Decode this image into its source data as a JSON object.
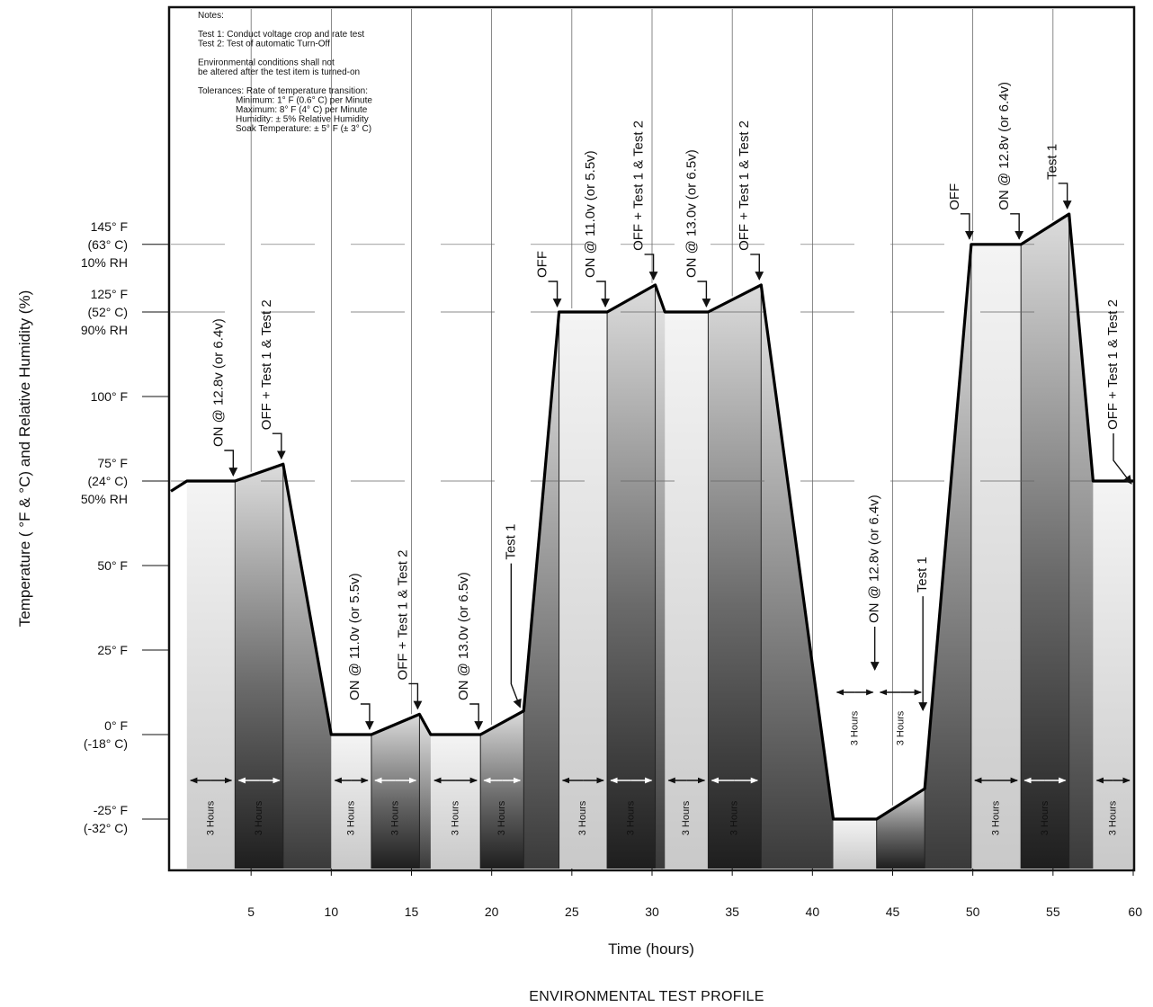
{
  "chart_data": {
    "type": "line",
    "title": "ENVIRONMENTAL TEST PROFILE",
    "xlabel": "Time (hours)",
    "ylabel": "Temperature ( °F & °C) and Relative Humidity (%)",
    "xlim": [
      0,
      60
    ],
    "ylim": [
      -40,
      185
    ],
    "grid": false,
    "x_ticks": [
      {
        "value": 5,
        "label": "5"
      },
      {
        "value": 10,
        "label": "10"
      },
      {
        "value": 15,
        "label": "15"
      },
      {
        "value": 20,
        "label": "20"
      },
      {
        "value": 25,
        "label": "25"
      },
      {
        "value": 30,
        "label": "30"
      },
      {
        "value": 35,
        "label": "35"
      },
      {
        "value": 40,
        "label": "40"
      },
      {
        "value": 45,
        "label": "45"
      },
      {
        "value": 50,
        "label": "50"
      },
      {
        "value": 55,
        "label": "55"
      },
      {
        "value": 60,
        "label": "60"
      }
    ],
    "y_ticks": [
      {
        "value": 145,
        "lines": [
          "145° F",
          "(63° C)",
          "10% RH"
        ]
      },
      {
        "value": 125,
        "lines": [
          "125° F",
          "(52° C)",
          "90% RH"
        ]
      },
      {
        "value": 100,
        "lines": [
          "100° F"
        ]
      },
      {
        "value": 75,
        "lines": [
          "75° F",
          "(24° C)",
          "50% RH"
        ]
      },
      {
        "value": 50,
        "lines": [
          "50° F"
        ]
      },
      {
        "value": 25,
        "lines": [
          "25° F"
        ]
      },
      {
        "value": 0,
        "lines": [
          "0° F",
          "(-18° C)"
        ]
      },
      {
        "value": -25,
        "lines": [
          "-25° F",
          "(-32° C)"
        ]
      }
    ],
    "series": [
      {
        "x": [
          0,
          1,
          4,
          7,
          10,
          12.5,
          15.5,
          16.2,
          19.3,
          22,
          24.2,
          27.2,
          30.2,
          30.8,
          33.5,
          36.8,
          41.3,
          44,
          47,
          49.9,
          53,
          56,
          57.5,
          60
        ],
        "y": [
          72,
          75,
          75,
          80,
          0,
          0,
          6,
          0,
          0,
          7,
          125,
          125,
          133,
          125,
          125,
          133,
          -25,
          -25,
          -16,
          145,
          145,
          154,
          75,
          75
        ]
      }
    ],
    "notes": [
      "Notes:",
      "",
      "Test 1: Conduct voltage crop and rate test",
      "Test 2: Test of automatic Turn-Off",
      "",
      "Environmental conditions shall not",
      "be altered after the test item is turned-on",
      "",
      "Tolerances: Rate of temperature transition:",
      "Minimum: 1° F (0.6° C) per Minute",
      "Maximum: 8° F (4° C) per Minute",
      "Humidity: ± 5% Relative Humidity",
      "Soak Temperature: ± 5° F (± 3° C)"
    ],
    "annotations": [
      {
        "text": "ON @ 12.8v (or 6.4v)",
        "x": 4
      },
      {
        "text": "OFF + Test 1 & Test 2",
        "x": 7
      },
      {
        "text": "ON @ 11.0v (or 5.5v)",
        "x": 12.5
      },
      {
        "text": "OFF + Test 1 & Test 2",
        "x": 15.5
      },
      {
        "text": "ON @ 13.0v (or 6.5v)",
        "x": 19.3
      },
      {
        "text": "Test 1",
        "x": 22
      },
      {
        "text": "OFF",
        "x": 24.2
      },
      {
        "text": "ON @ 11.0v (or 5.5v)",
        "x": 27.2
      },
      {
        "text": "OFF + Test 1 & Test 2",
        "x": 30.2
      },
      {
        "text": "ON @ 13.0v (or 6.5v)",
        "x": 33.5
      },
      {
        "text": "OFF + Test 1 & Test 2",
        "x": 36.8
      },
      {
        "text": "ON @ 12.8v (or 6.4v)",
        "x": 44
      },
      {
        "text": "Test 1",
        "x": 47
      },
      {
        "text": "OFF",
        "x": 49.9
      },
      {
        "text": "ON @ 12.8v (or 6.4v)",
        "x": 53
      },
      {
        "text": "Test 1",
        "x": 56
      },
      {
        "text": "OFF + Test 1 & Test 2",
        "x": 60
      }
    ],
    "durations": [
      {
        "label": "3 Hours",
        "x1": 1,
        "x2": 4
      },
      {
        "label": "3 Hours",
        "x1": 4,
        "x2": 7
      },
      {
        "label": "3 Hours",
        "x1": 10,
        "x2": 12.5
      },
      {
        "label": "3 Hours",
        "x1": 12.5,
        "x2": 15.5
      },
      {
        "label": "3 Hours",
        "x1": 16.2,
        "x2": 19.3
      },
      {
        "label": "3 Hours",
        "x1": 19.3,
        "x2": 22
      },
      {
        "label": "3 Hours",
        "x1": 24.2,
        "x2": 27.2
      },
      {
        "label": "3 Hours",
        "x1": 27.2,
        "x2": 30.2
      },
      {
        "label": "3 Hours",
        "x1": 30.8,
        "x2": 33.5
      },
      {
        "label": "3 Hours",
        "x1": 33.5,
        "x2": 36.8
      },
      {
        "label": "3 Hours",
        "x1": 41.3,
        "x2": 44
      },
      {
        "label": "3 Hours",
        "x1": 44,
        "x2": 47
      },
      {
        "label": "3 Hours",
        "x1": 49.9,
        "x2": 53
      },
      {
        "label": "3 Hours",
        "x1": 53,
        "x2": 56
      },
      {
        "label": "3 Hours",
        "x1": 57.5,
        "x2": 60
      }
    ]
  }
}
